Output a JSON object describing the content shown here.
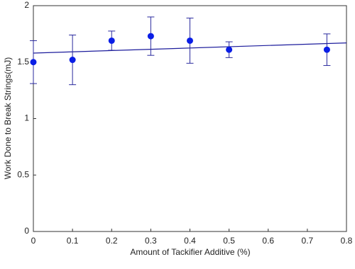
{
  "chart_data": {
    "type": "scatter",
    "xlabel": "Amount of Tackifier Additive (%)",
    "ylabel": "Work Done to Break Strings(mJ)",
    "x": [
      0,
      0.1,
      0.2,
      0.3,
      0.4,
      0.5,
      0.75
    ],
    "values": [
      1.5,
      1.52,
      1.69,
      1.73,
      1.69,
      1.61,
      1.61
    ],
    "errors": [
      0.19,
      0.22,
      0.085,
      0.17,
      0.2,
      0.07,
      0.14
    ],
    "color": "#0a1ee6",
    "error_color": "#2a2a9e",
    "trend": {
      "x": [
        0,
        0.8
      ],
      "values": [
        1.58,
        1.67
      ],
      "color": "#1c1c9c"
    },
    "xlim": [
      0,
      0.8
    ],
    "xticks": [
      0,
      0.1,
      0.2,
      0.3,
      0.4,
      0.5,
      0.6,
      0.7,
      0.8
    ],
    "ylim": [
      0,
      2
    ],
    "yticks": [
      0,
      0.5,
      1,
      1.5,
      2
    ]
  }
}
